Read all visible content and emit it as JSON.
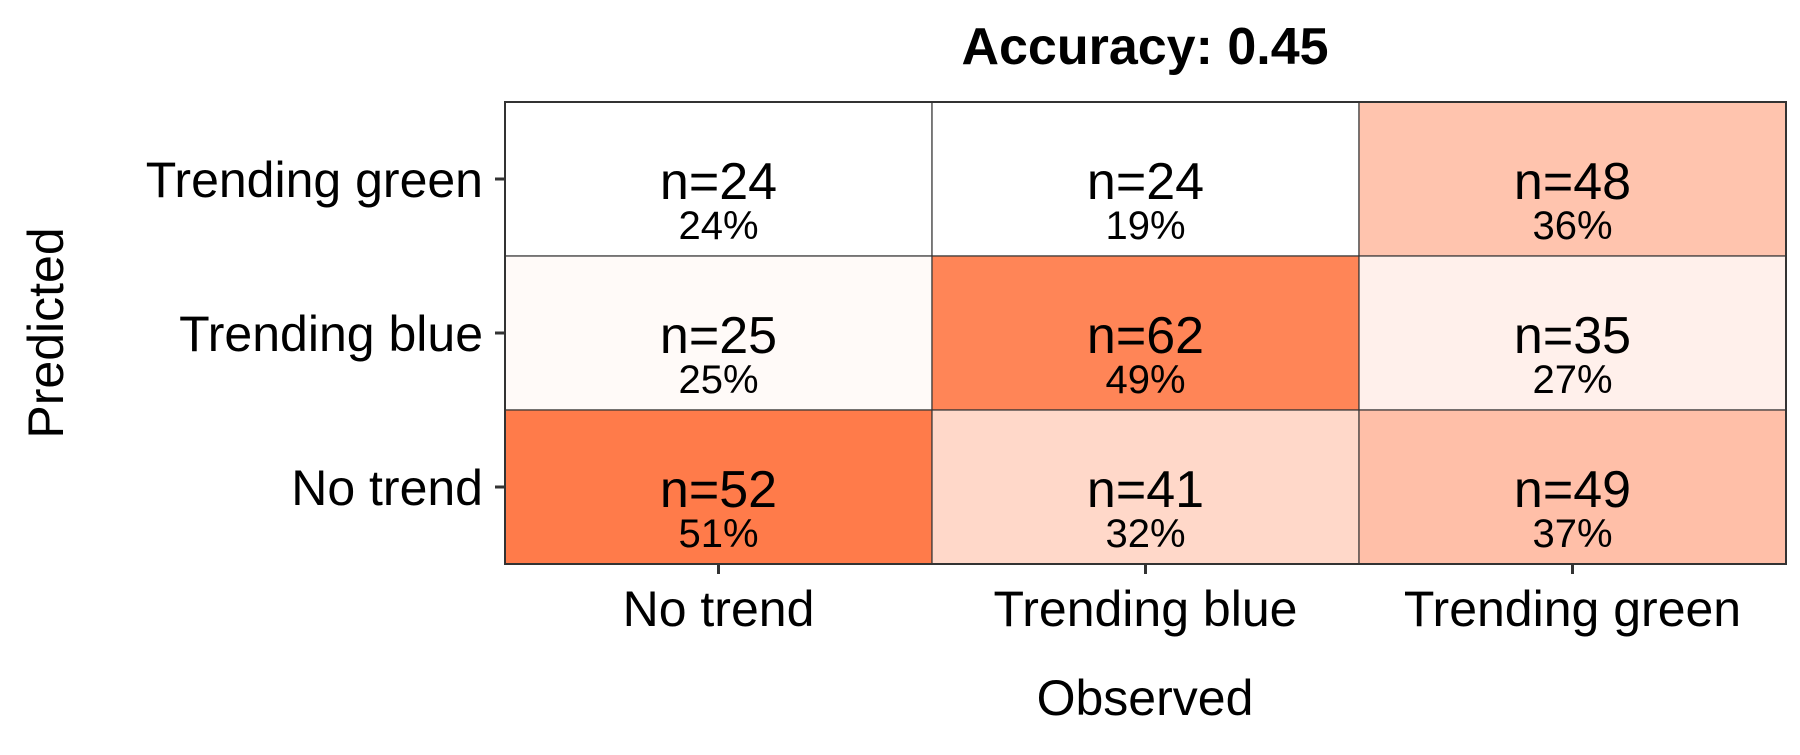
{
  "chart_data": {
    "type": "heatmap",
    "title": "Accuracy: 0.45",
    "xlabel": "Observed",
    "ylabel": "Predicted",
    "x_categories": [
      "No trend",
      "Trending blue",
      "Trending green"
    ],
    "y_categories": [
      "No trend",
      "Trending blue",
      "Trending green"
    ],
    "cells": [
      {
        "observed": "No trend",
        "predicted": "Trending green",
        "n": 24,
        "label": "n=24",
        "pct_label": "24%",
        "pct": 24
      },
      {
        "observed": "Trending blue",
        "predicted": "Trending green",
        "n": 24,
        "label": "n=24",
        "pct_label": "19%",
        "pct": 19
      },
      {
        "observed": "Trending green",
        "predicted": "Trending green",
        "n": 48,
        "label": "n=48",
        "pct_label": "36%",
        "pct": 36
      },
      {
        "observed": "No trend",
        "predicted": "Trending blue",
        "n": 25,
        "label": "n=25",
        "pct_label": "25%",
        "pct": 25
      },
      {
        "observed": "Trending blue",
        "predicted": "Trending blue",
        "n": 62,
        "label": "n=62",
        "pct_label": "49%",
        "pct": 49
      },
      {
        "observed": "Trending green",
        "predicted": "Trending blue",
        "n": 35,
        "label": "n=35",
        "pct_label": "27%",
        "pct": 27
      },
      {
        "observed": "No trend",
        "predicted": "No trend",
        "n": 52,
        "label": "n=52",
        "pct_label": "51%",
        "pct": 51
      },
      {
        "observed": "Trending blue",
        "predicted": "No trend",
        "n": 41,
        "label": "n=41",
        "pct_label": "32%",
        "pct": 32
      },
      {
        "observed": "Trending green",
        "predicted": "No trend",
        "n": 49,
        "label": "n=49",
        "pct_label": "37%",
        "pct": 37
      }
    ],
    "color_low": "#ffffff",
    "color_high": "#ff4500",
    "fill_range": [
      24,
      62
    ],
    "grid": false,
    "legend": "none"
  }
}
